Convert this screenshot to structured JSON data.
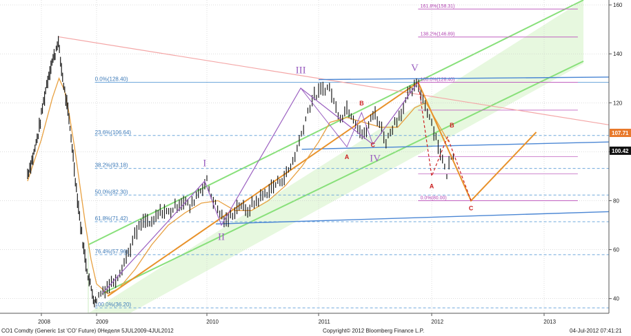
{
  "chart_data": {
    "type": "candlestick",
    "instrument": "CO1 Comdty (Generic 1st 'CO' Future)",
    "x_labels": [
      "2008",
      "2009",
      "2010",
      "2011",
      "2012",
      "2013"
    ],
    "y_ticks": [
      40,
      60,
      80,
      100,
      120,
      140,
      160
    ],
    "ylim": [
      34,
      162
    ],
    "current_price_labels": [
      {
        "value": 107.71,
        "text": "107.71",
        "color": "#e8792b"
      },
      {
        "value": 100.42,
        "text": "100.42",
        "color": "#111111"
      }
    ],
    "fib_retracement": [
      {
        "text": "0.0%(128.40)",
        "value": 128.4
      },
      {
        "text": "23.6%(106.64)",
        "value": 106.64
      },
      {
        "text": "38.2%(93.18)",
        "value": 93.18
      },
      {
        "text": "50.0%(82.30)",
        "value": 82.3
      },
      {
        "text": "61.8%(71.42)",
        "value": 71.42
      },
      {
        "text": "76.4%(57.96)",
        "value": 57.96
      },
      {
        "text": "100.0%(36.20)",
        "value": 36.2
      }
    ],
    "fib_extension": [
      {
        "text": "161.8%(158.31)",
        "value": 158.31
      },
      {
        "text": "138.2%(146.89)",
        "value": 146.89
      },
      {
        "text": "100.0%(128.40)",
        "value": 128.4
      },
      {
        "text": "0.0%(80.00)",
        "value": 80.0
      }
    ],
    "wave_labels": [
      "I",
      "II",
      "III",
      "IV",
      "V"
    ],
    "abc_labels": [
      "A",
      "B",
      "C",
      "A",
      "B",
      "C"
    ],
    "series": [
      {
        "kind": "price",
        "color": "#1a1a1a",
        "points": [
          [
            2007.75,
            91
          ],
          [
            2007.85,
            98
          ],
          [
            2007.95,
            108
          ],
          [
            2008.02,
            118
          ],
          [
            2008.1,
            128
          ],
          [
            2008.18,
            136
          ],
          [
            2008.25,
            140
          ],
          [
            2008.3,
            146
          ],
          [
            2008.34,
            138
          ],
          [
            2008.4,
            128
          ],
          [
            2008.47,
            118
          ],
          [
            2008.55,
            104
          ],
          [
            2008.62,
            88
          ],
          [
            2008.7,
            72
          ],
          [
            2008.78,
            58
          ],
          [
            2008.86,
            48
          ],
          [
            2008.93,
            42
          ],
          [
            2008.97,
            38
          ],
          [
            2009.0,
            40
          ],
          [
            2009.05,
            43
          ],
          [
            2009.1,
            45
          ],
          [
            2009.15,
            47
          ],
          [
            2009.2,
            50
          ],
          [
            2009.25,
            55
          ],
          [
            2009.3,
            60
          ],
          [
            2009.35,
            66
          ],
          [
            2009.4,
            70
          ],
          [
            2009.45,
            72
          ],
          [
            2009.5,
            70
          ],
          [
            2009.55,
            74
          ],
          [
            2009.6,
            76
          ],
          [
            2009.65,
            75
          ],
          [
            2009.7,
            77
          ],
          [
            2009.75,
            79
          ],
          [
            2009.8,
            80
          ],
          [
            2009.85,
            77
          ],
          [
            2009.9,
            82
          ],
          [
            2009.95,
            85
          ],
          [
            2010.0,
            88
          ],
          [
            2010.03,
            83
          ],
          [
            2010.07,
            79
          ],
          [
            2010.1,
            76
          ],
          [
            2010.13,
            74
          ],
          [
            2010.17,
            71
          ],
          [
            2010.2,
            73
          ],
          [
            2010.25,
            76
          ],
          [
            2010.3,
            79
          ],
          [
            2010.35,
            75
          ],
          [
            2010.4,
            78
          ],
          [
            2010.45,
            80
          ],
          [
            2010.5,
            82
          ],
          [
            2010.55,
            84
          ],
          [
            2010.6,
            86
          ],
          [
            2010.65,
            88
          ],
          [
            2010.7,
            90
          ],
          [
            2010.75,
            94
          ],
          [
            2010.8,
            100
          ],
          [
            2010.85,
            108
          ],
          [
            2010.9,
            116
          ],
          [
            2010.95,
            122
          ],
          [
            2011.0,
            124
          ],
          [
            2011.05,
            126
          ],
          [
            2011.1,
            126
          ],
          [
            2011.15,
            118
          ],
          [
            2011.2,
            114
          ],
          [
            2011.25,
            118
          ],
          [
            2011.3,
            115
          ],
          [
            2011.35,
            110
          ],
          [
            2011.4,
            106
          ],
          [
            2011.45,
            112
          ],
          [
            2011.5,
            116
          ],
          [
            2011.55,
            110
          ],
          [
            2011.6,
            104
          ],
          [
            2011.65,
            110
          ],
          [
            2011.7,
            114
          ],
          [
            2011.75,
            118
          ],
          [
            2011.8,
            124
          ],
          [
            2011.85,
            126
          ],
          [
            2011.88,
            128
          ],
          [
            2011.92,
            122
          ],
          [
            2011.97,
            116
          ],
          [
            2012.0,
            112
          ],
          [
            2012.05,
            104
          ],
          [
            2012.1,
            96
          ],
          [
            2012.13,
            90
          ],
          [
            2012.16,
            96
          ],
          [
            2012.2,
            100
          ]
        ]
      },
      {
        "kind": "moving-average",
        "color": "#e8a040",
        "points": [
          [
            2007.75,
            88
          ],
          [
            2008.0,
            105
          ],
          [
            2008.2,
            122
          ],
          [
            2008.32,
            130
          ],
          [
            2008.42,
            125
          ],
          [
            2008.5,
            116
          ],
          [
            2008.6,
            102
          ],
          [
            2008.7,
            86
          ],
          [
            2008.8,
            70
          ],
          [
            2008.9,
            56
          ],
          [
            2009.0,
            46
          ],
          [
            2009.1,
            42
          ],
          [
            2009.2,
            44
          ],
          [
            2009.35,
            52
          ],
          [
            2009.5,
            62
          ],
          [
            2009.65,
            70
          ],
          [
            2009.8,
            75
          ],
          [
            2009.95,
            79
          ],
          [
            2010.1,
            80
          ],
          [
            2010.25,
            76
          ],
          [
            2010.4,
            76
          ],
          [
            2010.55,
            80
          ],
          [
            2010.7,
            86
          ],
          [
            2010.85,
            94
          ],
          [
            2011.0,
            104
          ],
          [
            2011.1,
            112
          ],
          [
            2011.25,
            114
          ],
          [
            2011.4,
            112
          ],
          [
            2011.55,
            110
          ],
          [
            2011.7,
            110
          ],
          [
            2011.85,
            118
          ],
          [
            2011.95,
            120
          ],
          [
            2012.05,
            112
          ],
          [
            2012.15,
            104
          ]
        ]
      }
    ]
  },
  "footer": {
    "left": "CO1 Comdty (Generic 1st 'CO' Future) 0Неделя 5JUL2009-4JUL2012",
    "center": "Copyright© 2012 Bloomberg Finance L.P.",
    "right": "04-Jul-2012 07:41:21"
  }
}
